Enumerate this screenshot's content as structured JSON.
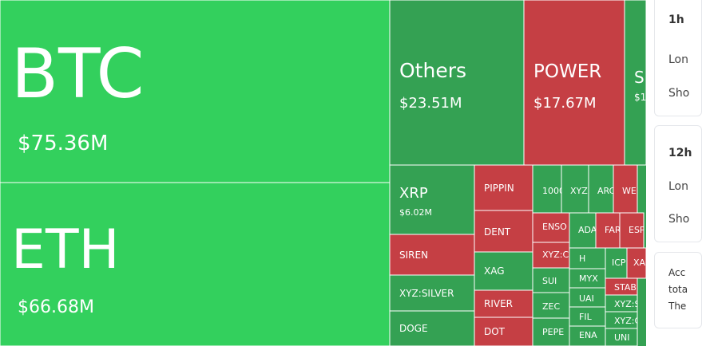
{
  "chart_data": {
    "type": "treemap",
    "tiles": [
      {
        "name": "BTC",
        "value": "$75.36M",
        "status": "long"
      },
      {
        "name": "ETH",
        "value": "$66.68M",
        "status": "long"
      },
      {
        "name": "Others",
        "value": "$23.51M",
        "status": "long-dark"
      },
      {
        "name": "POWER",
        "value": "$17.67M",
        "status": "short"
      },
      {
        "name": "S",
        "value": "$1",
        "status": "long-dark"
      },
      {
        "name": "XRP",
        "value": "$6.02M",
        "status": "long-dark"
      },
      {
        "name": "SIREN",
        "status": "short"
      },
      {
        "name": "XYZ:SILVER",
        "status": "long-dark"
      },
      {
        "name": "DOGE",
        "status": "long-dark"
      },
      {
        "name": "PIPPIN",
        "status": "short"
      },
      {
        "name": "DENT",
        "status": "short"
      },
      {
        "name": "XAG",
        "status": "long-dark"
      },
      {
        "name": "RIVER",
        "status": "short"
      },
      {
        "name": "DOT",
        "status": "short"
      },
      {
        "name": "1000",
        "status": "long-dark"
      },
      {
        "name": "XYZ",
        "status": "long-dark"
      },
      {
        "name": "ARC",
        "status": "long-dark"
      },
      {
        "name": "WE",
        "status": "short"
      },
      {
        "name": "ENSO",
        "status": "short"
      },
      {
        "name": "ADA",
        "status": "long-dark"
      },
      {
        "name": "FAR",
        "status": "short"
      },
      {
        "name": "ESP",
        "status": "short"
      },
      {
        "name": "XYZ:C",
        "status": "short"
      },
      {
        "name": "H",
        "status": "long-dark"
      },
      {
        "name": "ICP",
        "status": "long-dark"
      },
      {
        "name": "XA",
        "status": "short"
      },
      {
        "name": "SUI",
        "status": "long-dark"
      },
      {
        "name": "MYX",
        "status": "long-dark"
      },
      {
        "name": "STAB",
        "status": "short"
      },
      {
        "name": "ZEC",
        "status": "long-dark"
      },
      {
        "name": "UAI",
        "status": "long-dark"
      },
      {
        "name": "XYZ:S",
        "status": "long-dark"
      },
      {
        "name": "FIL",
        "status": "long-dark"
      },
      {
        "name": "XYZ:C",
        "status": "long-dark"
      },
      {
        "name": "PEPE",
        "status": "long-dark"
      },
      {
        "name": "ENA",
        "status": "long-dark"
      },
      {
        "name": "UNI",
        "status": "long-dark"
      }
    ]
  },
  "colors": {
    "long": "#33d05d",
    "long_dark": "#34a153",
    "short": "#c53f44",
    "border": "#ffffff"
  },
  "side_panels": {
    "panel1": {
      "title": "1h",
      "rows": [
        "Lon",
        "Sho"
      ]
    },
    "panel2": {
      "title": "12h",
      "rows": [
        "Lon",
        "Sho"
      ]
    },
    "panel3": {
      "lines": [
        "Acc",
        "tota",
        "The"
      ]
    }
  }
}
